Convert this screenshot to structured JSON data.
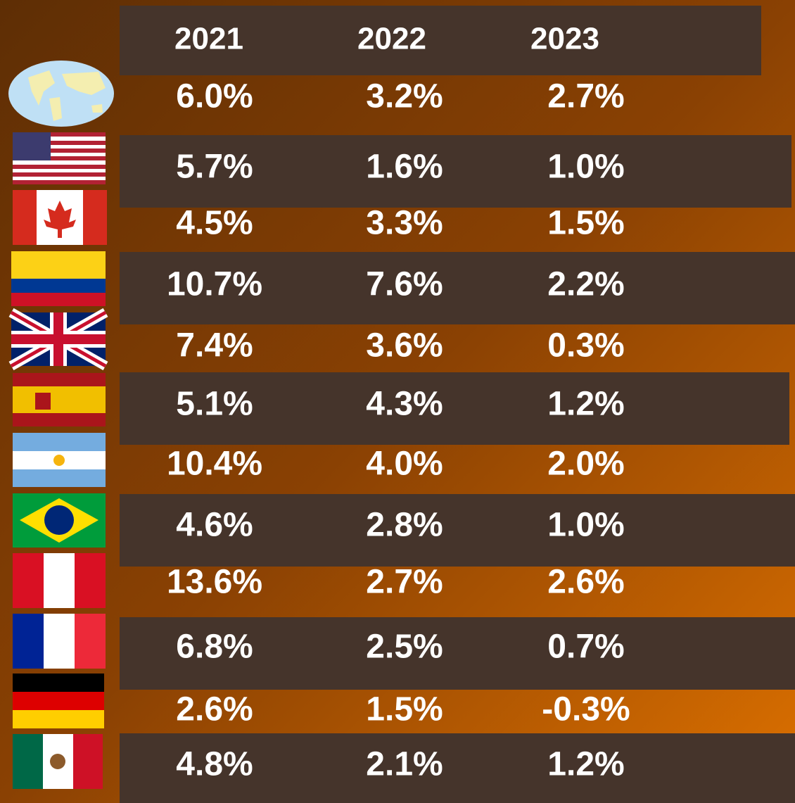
{
  "table": {
    "header": [
      "2021",
      "2022",
      "2023"
    ],
    "rows": [
      [
        "6.0%",
        "3.2%",
        "2.7%"
      ],
      [
        "5.7%",
        "1.6%",
        "1.0%"
      ],
      [
        "4.5%",
        "3.3%",
        "1.5%"
      ],
      [
        "10.7%",
        "7.6%",
        "2.2%"
      ],
      [
        "7.4%",
        "3.6%",
        "0.3%"
      ],
      [
        "5.1%",
        "4.3%",
        "1.2%"
      ],
      [
        "10.4%",
        "4.0%",
        "2.0%"
      ],
      [
        "4.6%",
        "2.8%",
        "1.0%"
      ],
      [
        "13.6%",
        "2.7%",
        "2.6%"
      ],
      [
        "6.8%",
        "2.5%",
        "0.7%"
      ],
      [
        "2.6%",
        "1.5%",
        "-0.3%"
      ],
      [
        "4.8%",
        "2.1%",
        "1.2%"
      ]
    ]
  }
}
